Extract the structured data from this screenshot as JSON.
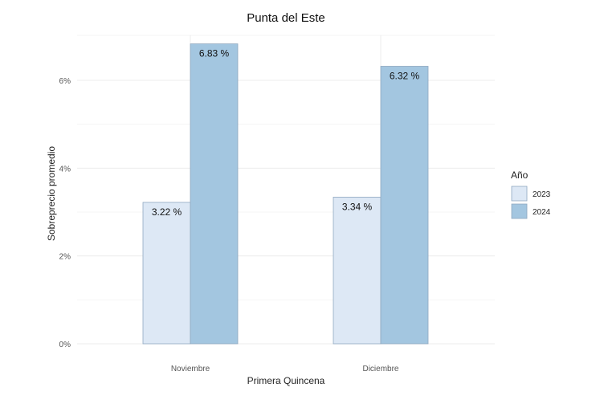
{
  "chart_data": {
    "type": "bar",
    "title": "Punta del Este",
    "xlabel": "Primera Quincena",
    "ylabel": "Sobreprecio promedio",
    "categories": [
      "Noviembre",
      "Diciembre"
    ],
    "series": [
      {
        "name": "2023",
        "values": [
          3.22,
          3.34
        ],
        "labels": [
          "3.22 %",
          "3.34 %"
        ],
        "color": "#dde8f5"
      },
      {
        "name": "2024",
        "values": [
          6.83,
          6.32
        ],
        "labels": [
          "6.83 %",
          "6.32 %"
        ],
        "color": "#a3c6e0"
      }
    ],
    "y_ticks": [
      0,
      2,
      4,
      6
    ],
    "y_tick_labels": [
      "0%",
      "2%",
      "4%",
      "6%"
    ],
    "ylim": [
      0,
      7
    ],
    "grid": true,
    "legend": {
      "title": "Año",
      "position": "right"
    }
  }
}
